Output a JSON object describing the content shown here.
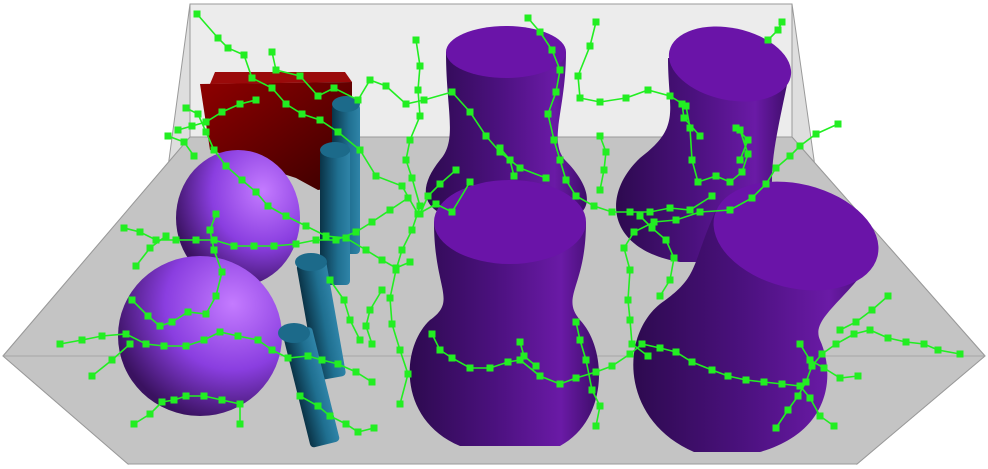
{
  "scene": {
    "colors": {
      "background": "#ffffff",
      "box_back_wall": "#ececec",
      "box_floor": "#c2c2c2",
      "box_side_wall": "#dcdcdc",
      "box_edge": "#9a9a9a",
      "vase_dark": "#2d0a4f",
      "vase_mid": "#4b117e",
      "vase_light": "#7a22b8",
      "vase_top": "#6a14a8",
      "sphere_dark": "#3a1260",
      "sphere_light": "#b86cff",
      "cylinder_dark": "#0a3347",
      "cylinder_light": "#2f84a8",
      "cylinder_top": "#1c6a8a",
      "block_dark": "#3a0000",
      "block_light": "#8e0000",
      "graph": "#22ee22"
    },
    "objects": [
      "box-enclosure",
      "red-block",
      "purple-sphere",
      "blue-cylinder",
      "purple-vase",
      "green-graph-network"
    ]
  }
}
